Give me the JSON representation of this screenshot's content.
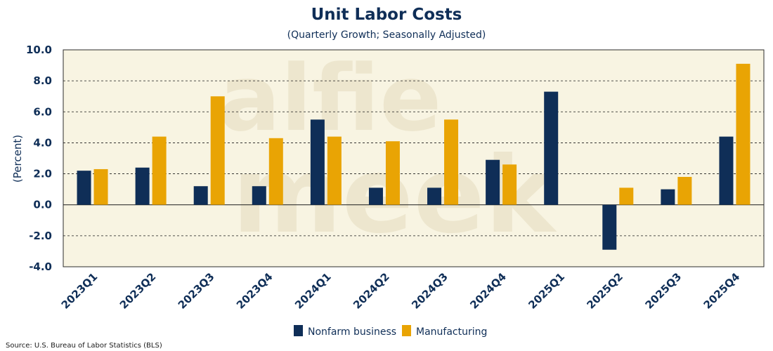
{
  "chart_data": {
    "type": "bar",
    "title": "Unit Labor Costs",
    "subtitle": "(Quarterly Growth; Seasonally Adjusted)",
    "ylabel": "(Percent)",
    "xlabel": "",
    "ylim": [
      -4.0,
      10.0
    ],
    "yticks": [
      -4.0,
      -2.0,
      0.0,
      2.0,
      4.0,
      6.0,
      8.0,
      10.0
    ],
    "grid": "horizontal dashed",
    "legend_position": "bottom-center",
    "categories": [
      "2023Q1",
      "2023Q2",
      "2023Q3",
      "2023Q4",
      "2024Q1",
      "2024Q2",
      "2024Q3",
      "2024Q4",
      "2025Q1",
      "2025Q2",
      "2025Q3",
      "2025Q4"
    ],
    "series": [
      {
        "name": "Nonfarm business",
        "color": "#0f2e57",
        "values": [
          2.2,
          2.4,
          1.2,
          1.2,
          5.5,
          1.1,
          1.1,
          2.9,
          7.3,
          -2.9,
          1.0,
          4.4
        ]
      },
      {
        "name": "Manufacturing",
        "color": "#e9a404",
        "values": [
          2.3,
          4.4,
          7.0,
          4.3,
          4.4,
          4.1,
          5.5,
          2.6,
          null,
          1.1,
          1.8,
          9.1
        ]
      }
    ],
    "source": "Source: U.S. Bureau of Labor Statistics (BLS)",
    "watermark": [
      "alfie",
      "meek"
    ]
  },
  "colors": {
    "plot_background": "#f8f4e2",
    "text": "#0f2e57"
  }
}
